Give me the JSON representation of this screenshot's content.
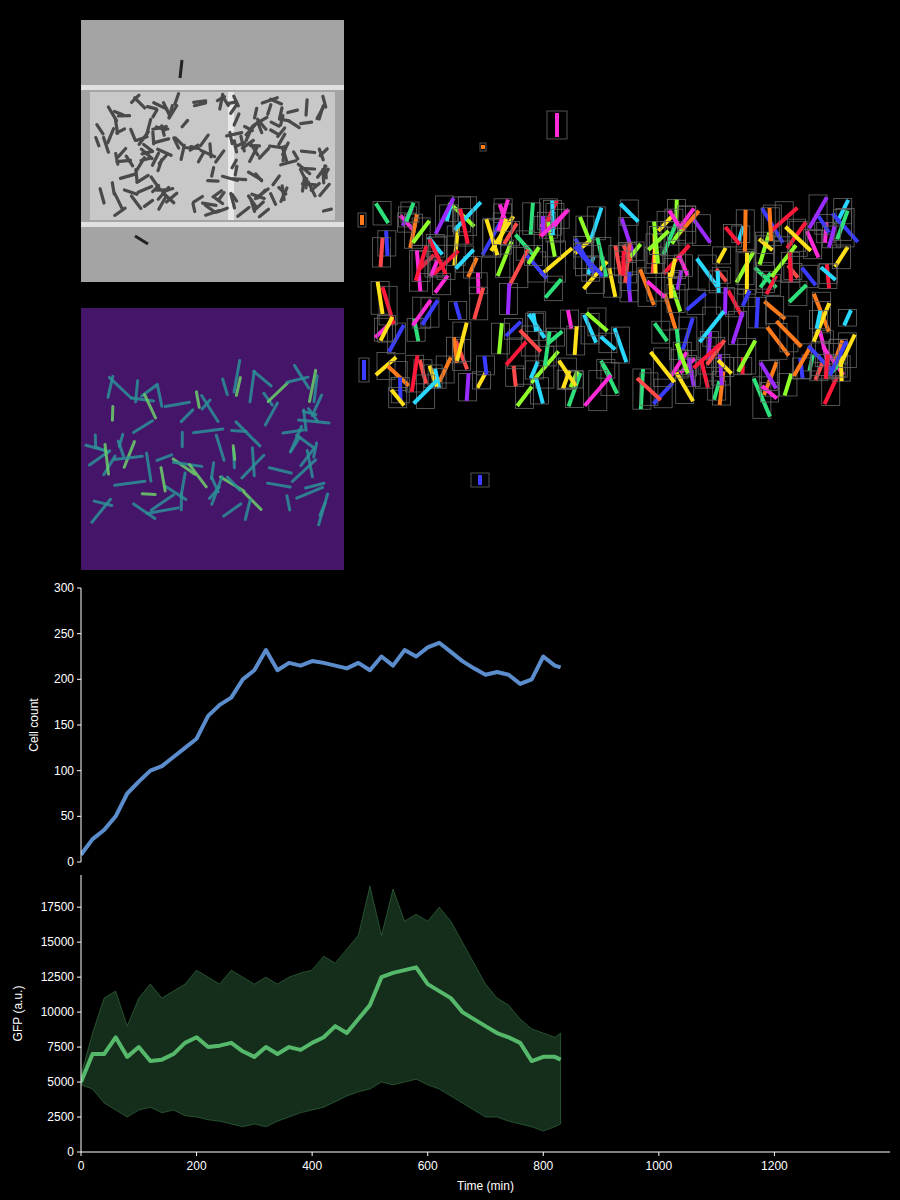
{
  "chart_data": [
    {
      "type": "line",
      "ylabel": "Cell count",
      "x": [
        0,
        20,
        40,
        60,
        80,
        100,
        120,
        140,
        160,
        180,
        200,
        220,
        240,
        260,
        280,
        300,
        320,
        340,
        360,
        380,
        400,
        420,
        440,
        460,
        480,
        500,
        520,
        540,
        560,
        580,
        600,
        620,
        640,
        660,
        680,
        700,
        720,
        740,
        760,
        780,
        800,
        820,
        830
      ],
      "series": [
        {
          "name": "Cell count",
          "color": "#5b8ccc",
          "values": [
            8,
            25,
            35,
            50,
            75,
            88,
            100,
            105,
            115,
            125,
            135,
            160,
            172,
            180,
            200,
            210,
            232,
            210,
            218,
            215,
            220,
            218,
            215,
            212,
            218,
            210,
            225,
            215,
            232,
            225,
            235,
            240,
            230,
            220,
            212,
            205,
            208,
            205,
            195,
            200,
            225,
            215,
            213
          ]
        }
      ],
      "xlim": [
        0,
        1400
      ],
      "ylim": [
        0,
        300
      ],
      "yticks": [
        0,
        50,
        100,
        150,
        200,
        250,
        300
      ],
      "tick_labels": "y"
    },
    {
      "type": "line",
      "ylabel": "GFP (a.u.)",
      "xlabel": "Time (min)",
      "x": [
        0,
        20,
        40,
        60,
        80,
        100,
        120,
        140,
        160,
        180,
        200,
        220,
        240,
        260,
        280,
        300,
        320,
        340,
        360,
        380,
        400,
        420,
        440,
        460,
        480,
        500,
        520,
        540,
        560,
        580,
        600,
        620,
        640,
        660,
        680,
        700,
        720,
        740,
        760,
        780,
        800,
        820,
        830
      ],
      "series": [
        {
          "name": "GFP (a.u.)",
          "color": "#55b86a",
          "values": [
            5000,
            7000,
            7000,
            8200,
            6800,
            7500,
            6500,
            6600,
            7000,
            7800,
            8200,
            7500,
            7600,
            7800,
            7200,
            6800,
            7500,
            7000,
            7500,
            7300,
            7800,
            8200,
            9000,
            8500,
            9500,
            10500,
            12500,
            12800,
            13000,
            13200,
            12000,
            11500,
            11000,
            10000,
            9500,
            9000,
            8500,
            8200,
            7800,
            6500,
            6800,
            6800,
            6600
          ],
          "lower": [
            4800,
            4500,
            3500,
            3000,
            2500,
            3000,
            3200,
            2800,
            3000,
            2600,
            2500,
            2300,
            2200,
            2000,
            1800,
            2000,
            1800,
            2200,
            2500,
            2800,
            3000,
            3200,
            3600,
            4000,
            4300,
            4500,
            5000,
            4800,
            5000,
            5200,
            4800,
            4500,
            4000,
            3500,
            3000,
            2500,
            2500,
            2200,
            2000,
            1800,
            1500,
            1800,
            2000
          ],
          "upper": [
            5500,
            8500,
            11000,
            11500,
            9000,
            11000,
            12000,
            11000,
            11500,
            12000,
            13000,
            12500,
            12000,
            13000,
            12500,
            12000,
            12500,
            12000,
            12500,
            12800,
            13000,
            14000,
            13500,
            14500,
            15500,
            19000,
            15500,
            18800,
            16500,
            17000,
            16500,
            17500,
            16500,
            15000,
            13500,
            12000,
            11000,
            10500,
            9500,
            8800,
            8500,
            8200,
            8500
          ]
        }
      ],
      "xlim": [
        0,
        1400
      ],
      "xticks": [
        0,
        200,
        400,
        600,
        800,
        1000,
        1200
      ],
      "ylim": [
        0,
        19800
      ],
      "yticks": [
        0,
        2500,
        5000,
        7500,
        10000,
        12500,
        15000,
        17500
      ]
    }
  ]
}
